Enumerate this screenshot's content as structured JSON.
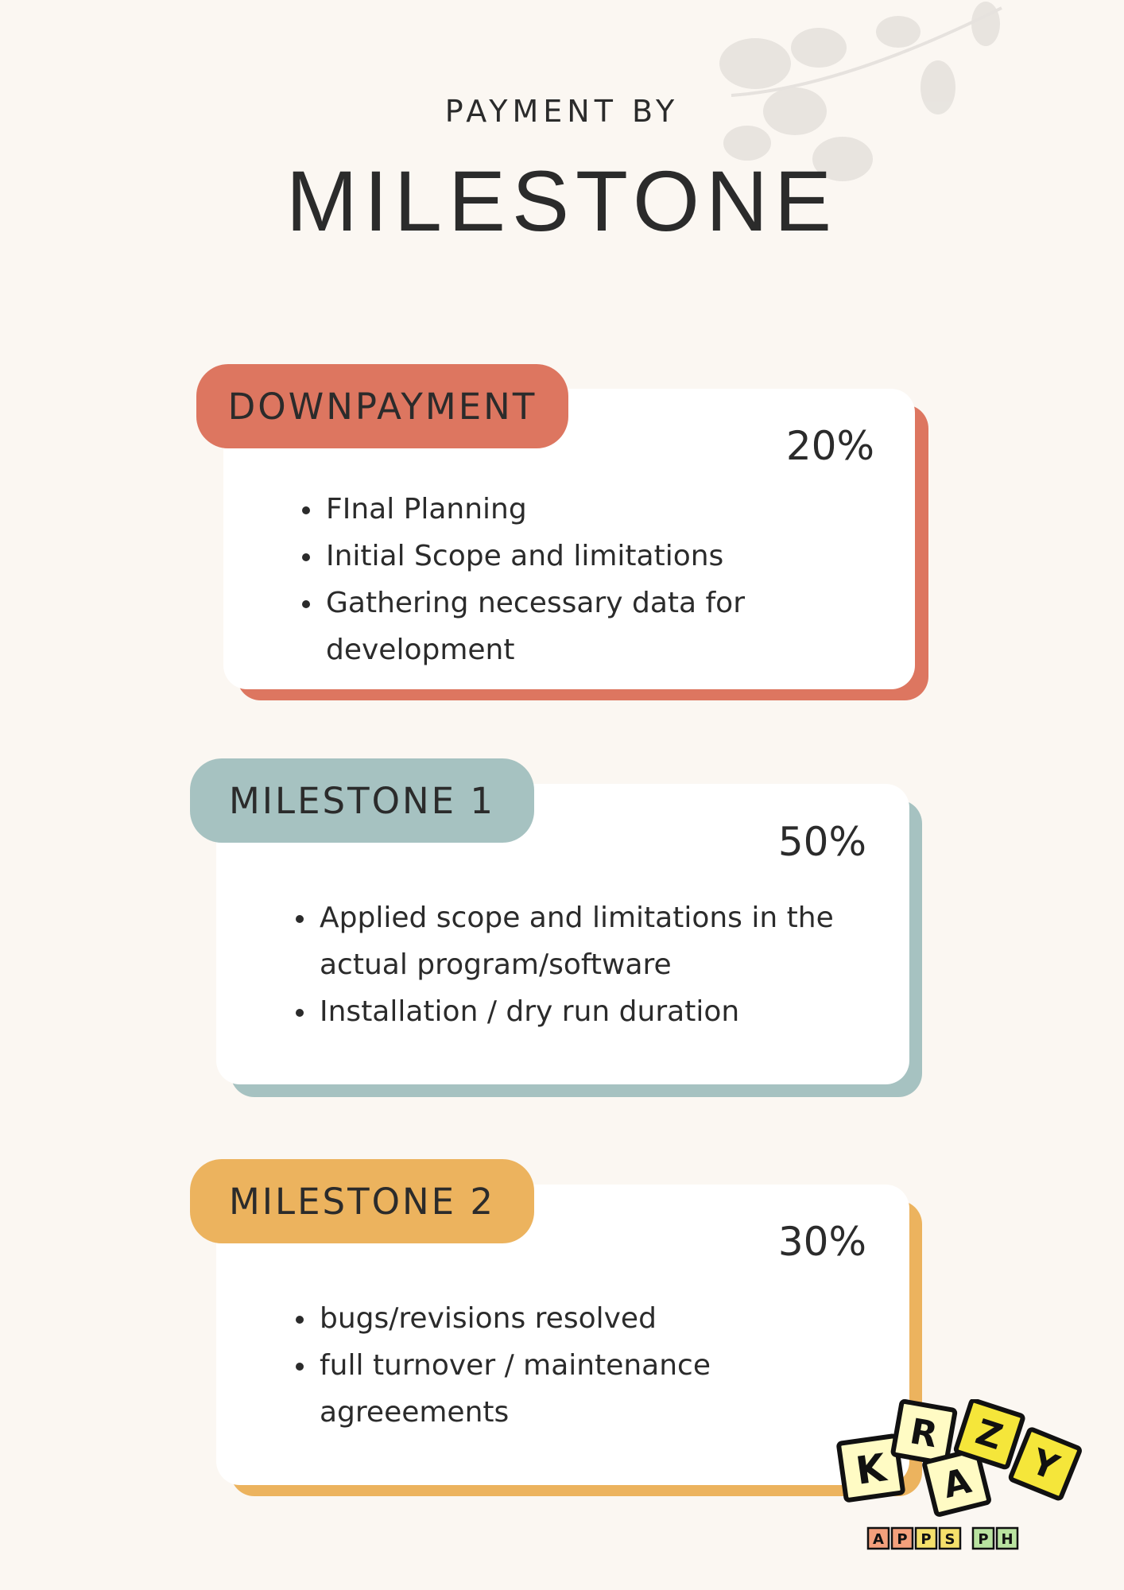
{
  "header": {
    "subtitle": "PAYMENT BY",
    "title": "MILESTONE"
  },
  "milestones": [
    {
      "tag": "DOWNPAYMENT",
      "percent": "20%",
      "color": "#dd7660",
      "points": [
        "FInal Planning",
        "Initial Scope and limitations",
        "Gathering necessary data for development"
      ]
    },
    {
      "tag": "MILESTONE 1",
      "percent": "50%",
      "color": "#a6c2c1",
      "points": [
        "Applied scope and limitations in the actual program/software",
        "Installation / dry run duration"
      ]
    },
    {
      "tag": "MILESTONE 2",
      "percent": "30%",
      "color": "#ecb35e",
      "points": [
        "bugs/revisions resolved",
        "full turnover / maintenance agreeements"
      ]
    }
  ],
  "logo": {
    "letters": [
      "K",
      "R",
      "A",
      "Z",
      "Y"
    ],
    "sub_letters": [
      "A",
      "P",
      "P",
      "S",
      "P",
      "H"
    ]
  }
}
